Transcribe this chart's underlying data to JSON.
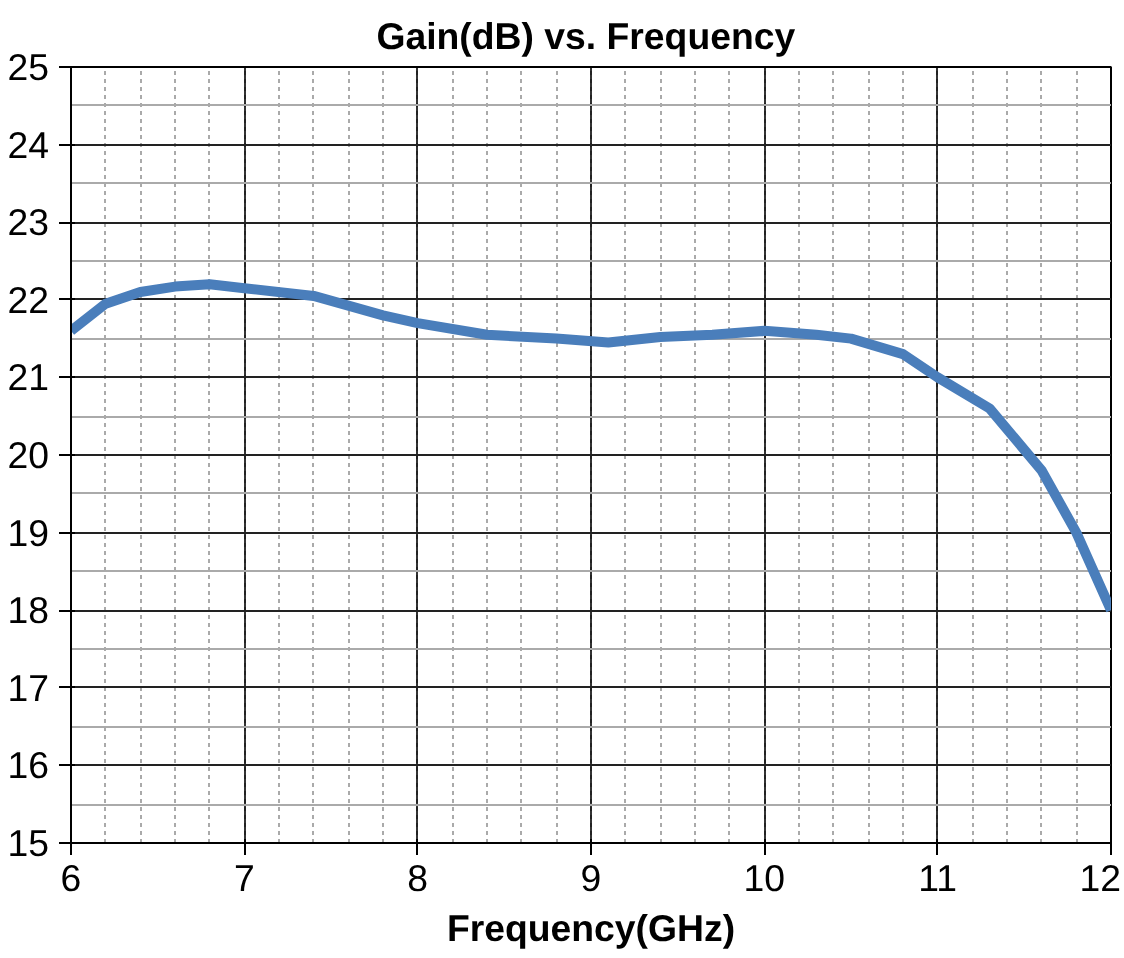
{
  "chart_data": {
    "type": "line",
    "title": "Gain(dB)  vs. Frequency",
    "xlabel": "Frequency(GHz)",
    "x": [
      6,
      6.2,
      6.4,
      6.6,
      6.8,
      7,
      7.4,
      7.8,
      8,
      8.4,
      8.8,
      9.1,
      9.4,
      9.7,
      10,
      10.3,
      10.5,
      10.8,
      11,
      11.3,
      11.6,
      11.8,
      12
    ],
    "series": [
      {
        "color": "#4a7ebb",
        "values": [
          21.6,
          21.95,
          22.1,
          22.17,
          22.2,
          22.15,
          22.05,
          21.8,
          21.7,
          21.55,
          21.5,
          21.45,
          21.52,
          21.55,
          21.6,
          21.55,
          21.5,
          21.3,
          21.0,
          20.6,
          19.8,
          19.0,
          18.0
        ]
      }
    ],
    "xlim": [
      6,
      12
    ],
    "xticks": [
      6,
      7,
      8,
      9,
      10,
      11,
      12
    ],
    "ylim": [
      15,
      25
    ],
    "yticks": [
      15,
      16,
      17,
      18,
      19,
      20,
      21,
      22,
      23,
      24,
      25
    ],
    "grid": true,
    "marker": "none",
    "line_style": "solid"
  }
}
